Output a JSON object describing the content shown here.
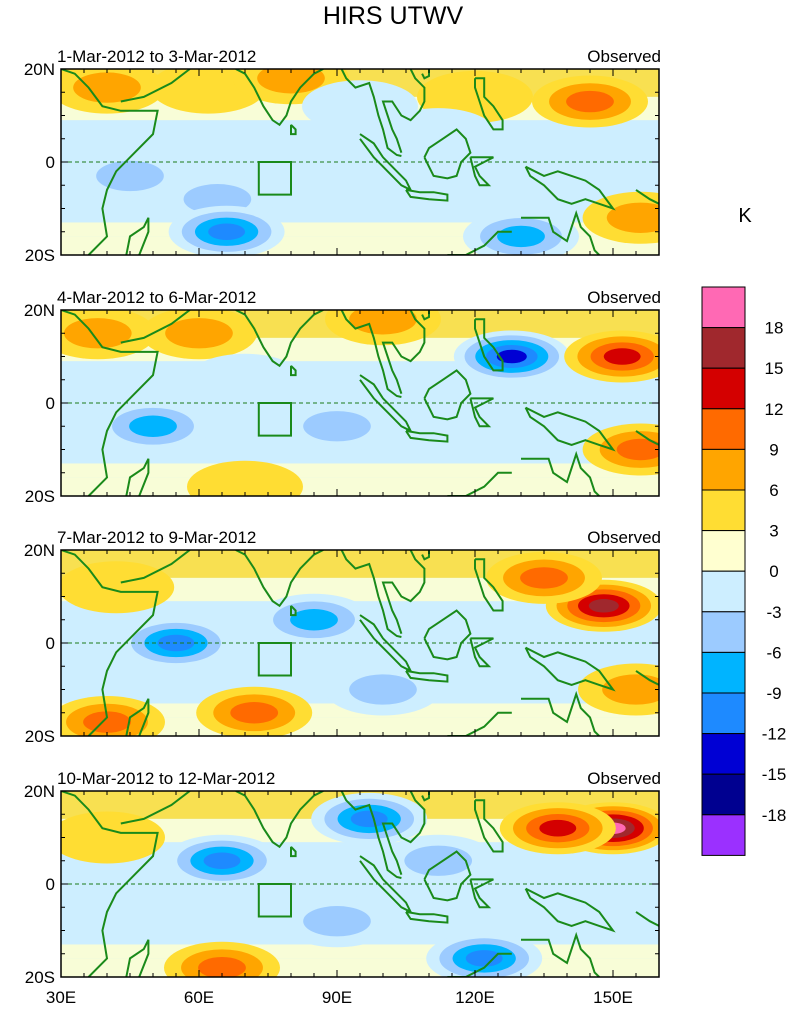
{
  "chart_data": {
    "type": "heatmap",
    "title": "HIRS UTWV",
    "colorbar": {
      "unit": "K",
      "labels": [
        "18",
        "15",
        "12",
        "9",
        "6",
        "3",
        "0",
        "-3",
        "-6",
        "-9",
        "-12",
        "-15",
        "-18"
      ],
      "level_values": [
        18,
        15,
        12,
        9,
        6,
        3,
        0,
        -3,
        -6,
        -9,
        -12,
        -15,
        -18
      ],
      "colors_top_to_bottom": [
        "#ff69b4",
        "#a0282d",
        "#d40000",
        "#ff6a00",
        "#ffa500",
        "#ffdd33",
        "#ffffd0",
        "#cdeeff",
        "#9ccbff",
        "#00b4ff",
        "#1e8aff",
        "#0000d4",
        "#000090",
        "#9b30ff"
      ]
    },
    "x_axis": {
      "ticks": [
        "30E",
        "60E",
        "90E",
        "120E",
        "150E"
      ],
      "tick_values": [
        30,
        60,
        90,
        120,
        150
      ],
      "range": [
        30,
        160
      ]
    },
    "y_axis": {
      "ticks": [
        "20N",
        "0",
        "20S"
      ],
      "tick_values": [
        20,
        0,
        -20
      ],
      "range": [
        -20,
        20
      ]
    },
    "panels": [
      {
        "date_range": "1-Mar-2012 to 3-Mar-2012",
        "label": "Observed",
        "blobs": [
          {
            "lon": 40,
            "lat": 16,
            "value": 6
          },
          {
            "lon": 62,
            "lat": 16,
            "value": 5
          },
          {
            "lon": 80,
            "lat": 18,
            "value": 6
          },
          {
            "lon": 145,
            "lat": 13,
            "value": 11
          },
          {
            "lon": 120,
            "lat": 14,
            "value": 4
          },
          {
            "lon": 64,
            "lat": -8,
            "value": -7
          },
          {
            "lon": 66,
            "lat": -15,
            "value": -13
          },
          {
            "lon": 45,
            "lat": -3,
            "value": -7
          },
          {
            "lon": 130,
            "lat": -16,
            "value": -10
          },
          {
            "lon": 156,
            "lat": -12,
            "value": 6
          },
          {
            "lon": 112,
            "lat": 6,
            "value": -4
          },
          {
            "lon": 95,
            "lat": 12,
            "value": -5
          }
        ]
      },
      {
        "date_range": "4-Mar-2012 to 6-Mar-2012",
        "label": "Observed",
        "blobs": [
          {
            "lon": 38,
            "lat": 15,
            "value": 6
          },
          {
            "lon": 60,
            "lat": 15,
            "value": 6
          },
          {
            "lon": 100,
            "lat": 18,
            "value": 6
          },
          {
            "lon": 128,
            "lat": 10,
            "value": -15
          },
          {
            "lon": 152,
            "lat": 10,
            "value": 12
          },
          {
            "lon": 156,
            "lat": -10,
            "value": 11
          },
          {
            "lon": 50,
            "lat": -5,
            "value": -9
          },
          {
            "lon": 90,
            "lat": -5,
            "value": -8
          },
          {
            "lon": 70,
            "lat": 5,
            "value": -5
          },
          {
            "lon": 70,
            "lat": -18,
            "value": 5
          }
        ]
      },
      {
        "date_range": "7-Mar-2012 to 9-Mar-2012",
        "label": "Observed",
        "blobs": [
          {
            "lon": 148,
            "lat": 8,
            "value": 17
          },
          {
            "lon": 135,
            "lat": 14,
            "value": 11
          },
          {
            "lon": 55,
            "lat": 0,
            "value": -13
          },
          {
            "lon": 85,
            "lat": 5,
            "value": -9
          },
          {
            "lon": 42,
            "lat": 12,
            "value": 4
          },
          {
            "lon": 72,
            "lat": -15,
            "value": 10
          },
          {
            "lon": 40,
            "lat": -17,
            "value": 9
          },
          {
            "lon": 100,
            "lat": -10,
            "value": -7
          },
          {
            "lon": 155,
            "lat": -10,
            "value": 6
          }
        ]
      },
      {
        "date_range": "10-Mar-2012 to 12-Mar-2012",
        "label": "Observed",
        "blobs": [
          {
            "lon": 150,
            "lat": 12,
            "value": 18
          },
          {
            "lon": 138,
            "lat": 12,
            "value": 12
          },
          {
            "lon": 97,
            "lat": 14,
            "value": -14
          },
          {
            "lon": 65,
            "lat": 5,
            "value": -12
          },
          {
            "lon": 65,
            "lat": -18,
            "value": 11
          },
          {
            "lon": 122,
            "lat": -16,
            "value": -14
          },
          {
            "lon": 40,
            "lat": 10,
            "value": 5
          },
          {
            "lon": 90,
            "lat": -8,
            "value": -7
          },
          {
            "lon": 112,
            "lat": 5,
            "value": -6
          }
        ]
      }
    ]
  }
}
